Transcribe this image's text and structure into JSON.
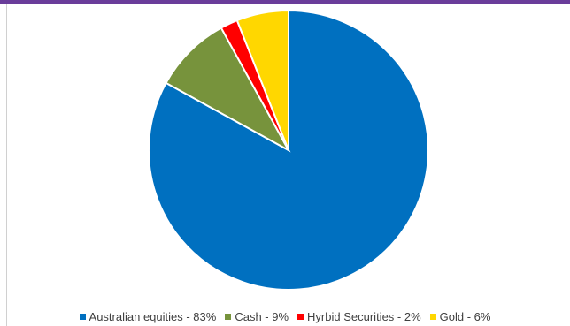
{
  "chart_data": {
    "type": "pie",
    "categories": [
      "Australian equities",
      "Cash",
      "Hyrbid Securities",
      "Gold"
    ],
    "values": [
      83,
      9,
      2,
      6
    ],
    "legend_labels": [
      "Australian equities - 83%",
      "Cash - 9%",
      "Hyrbid Securities - 2%",
      "Gold - 6%"
    ],
    "colors": [
      "#0070c0",
      "#77933c",
      "#ff0000",
      "#ffd700"
    ],
    "legend_position": "bottom",
    "start_angle": "12 o'clock",
    "direction": "clockwise"
  },
  "frame": {
    "accent_color": "#6a3d9a"
  }
}
